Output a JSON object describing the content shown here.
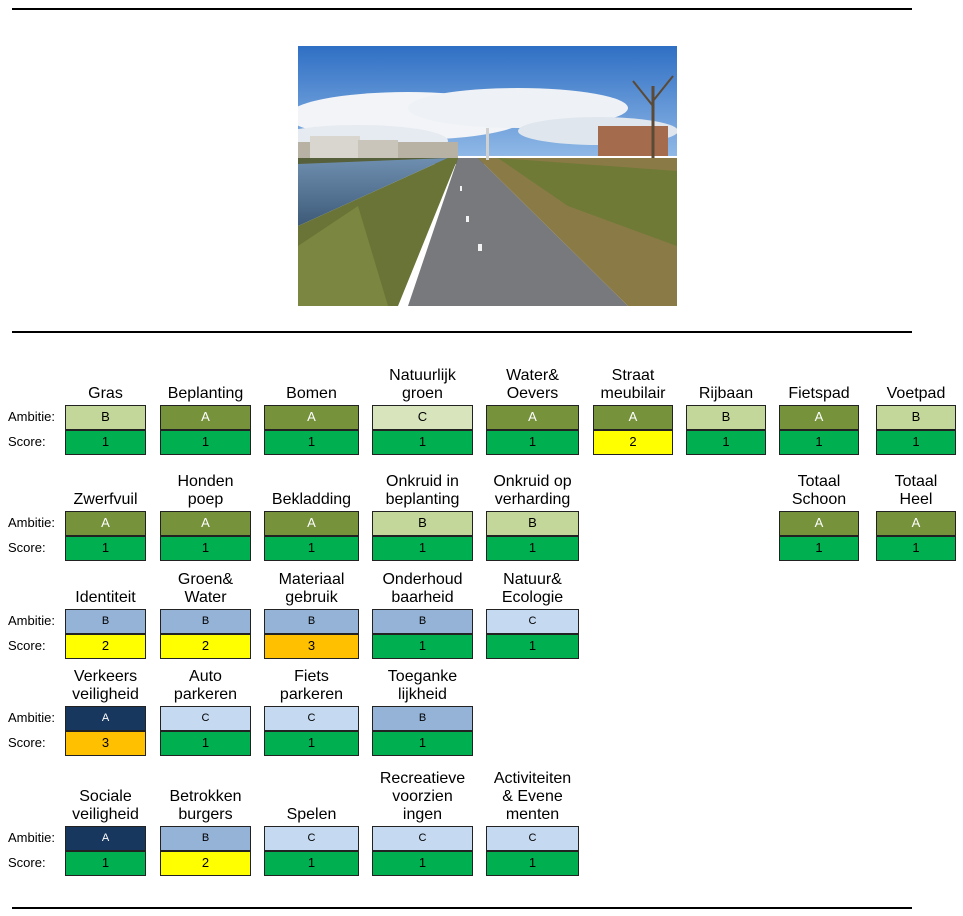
{
  "row_labels": {
    "ambition": "Ambitie:",
    "score": "Score:"
  },
  "colors": {
    "A": "#76933c",
    "B": "#c4d79b",
    "C": "#d8e4bc",
    "score1": "#00b050",
    "score2": "#ffff00",
    "score3": "#ffc000",
    "blueA": "#17375e",
    "blueB": "#95b3d7",
    "blueC": "#c5d9f1"
  },
  "photo": {
    "icon": "landscape-photo"
  },
  "rows": [
    {
      "items": [
        {
          "label": "Gras",
          "ambition": "B",
          "score": "1"
        },
        {
          "label": "Beplanting",
          "ambition": "A",
          "score": "1"
        },
        {
          "label": "Bomen",
          "ambition": "A",
          "score": "1"
        },
        {
          "label": "Natuurlijk groen",
          "ambition": "C",
          "score": "1"
        },
        {
          "label": "Water& Oevers",
          "ambition": "A",
          "score": "1"
        },
        {
          "label": "Straat meubilair",
          "ambition": "A",
          "score": "2"
        },
        {
          "label": "Rijbaan",
          "ambition": "B",
          "score": "1"
        },
        {
          "label": "Fietspad",
          "ambition": "A",
          "score": "1"
        },
        {
          "label": "Voetpad",
          "ambition": "B",
          "score": "1"
        }
      ]
    },
    {
      "items": [
        {
          "label": "Zwerfvuil",
          "ambition": "A",
          "score": "1"
        },
        {
          "label": "Honden poep",
          "ambition": "A",
          "score": "1"
        },
        {
          "label": "Bekladding",
          "ambition": "A",
          "score": "1"
        },
        {
          "label": "Onkruid in beplanting",
          "ambition": "B",
          "score": "1"
        },
        {
          "label": "Onkruid op verharding",
          "ambition": "B",
          "score": "1"
        },
        {
          "label": "Totaal Schoon",
          "ambition": "A",
          "score": "1"
        },
        {
          "label": "Totaal Heel",
          "ambition": "A",
          "score": "1"
        }
      ]
    },
    {
      "items": [
        {
          "label": "Identiteit",
          "ambition": "B",
          "score": "2"
        },
        {
          "label": "Groen& Water",
          "ambition": "B",
          "score": "2"
        },
        {
          "label": "Materiaal gebruik",
          "ambition": "B",
          "score": "3"
        },
        {
          "label": "Onderhoud baarheid",
          "ambition": "B",
          "score": "1"
        },
        {
          "label": "Natuur& Ecologie",
          "ambition": "C",
          "score": "1"
        }
      ]
    },
    {
      "items": [
        {
          "label": "Verkeers veiligheid",
          "ambition": "A",
          "score": "3"
        },
        {
          "label": "Auto parkeren",
          "ambition": "C",
          "score": "1"
        },
        {
          "label": "Fiets parkeren",
          "ambition": "C",
          "score": "1"
        },
        {
          "label": "Toeganke lijkheid",
          "ambition": "B",
          "score": "1"
        }
      ]
    },
    {
      "items": [
        {
          "label": "Sociale veiligheid",
          "ambition": "A",
          "score": "1"
        },
        {
          "label": "Betrokken burgers",
          "ambition": "B",
          "score": "2"
        },
        {
          "label": "Spelen",
          "ambition": "C",
          "score": "1"
        },
        {
          "label": "Recreatieve voorzien ingen",
          "ambition": "C",
          "score": "1"
        },
        {
          "label": "Activiteiten & Evene menten",
          "ambition": "C",
          "score": "1"
        }
      ]
    }
  ]
}
